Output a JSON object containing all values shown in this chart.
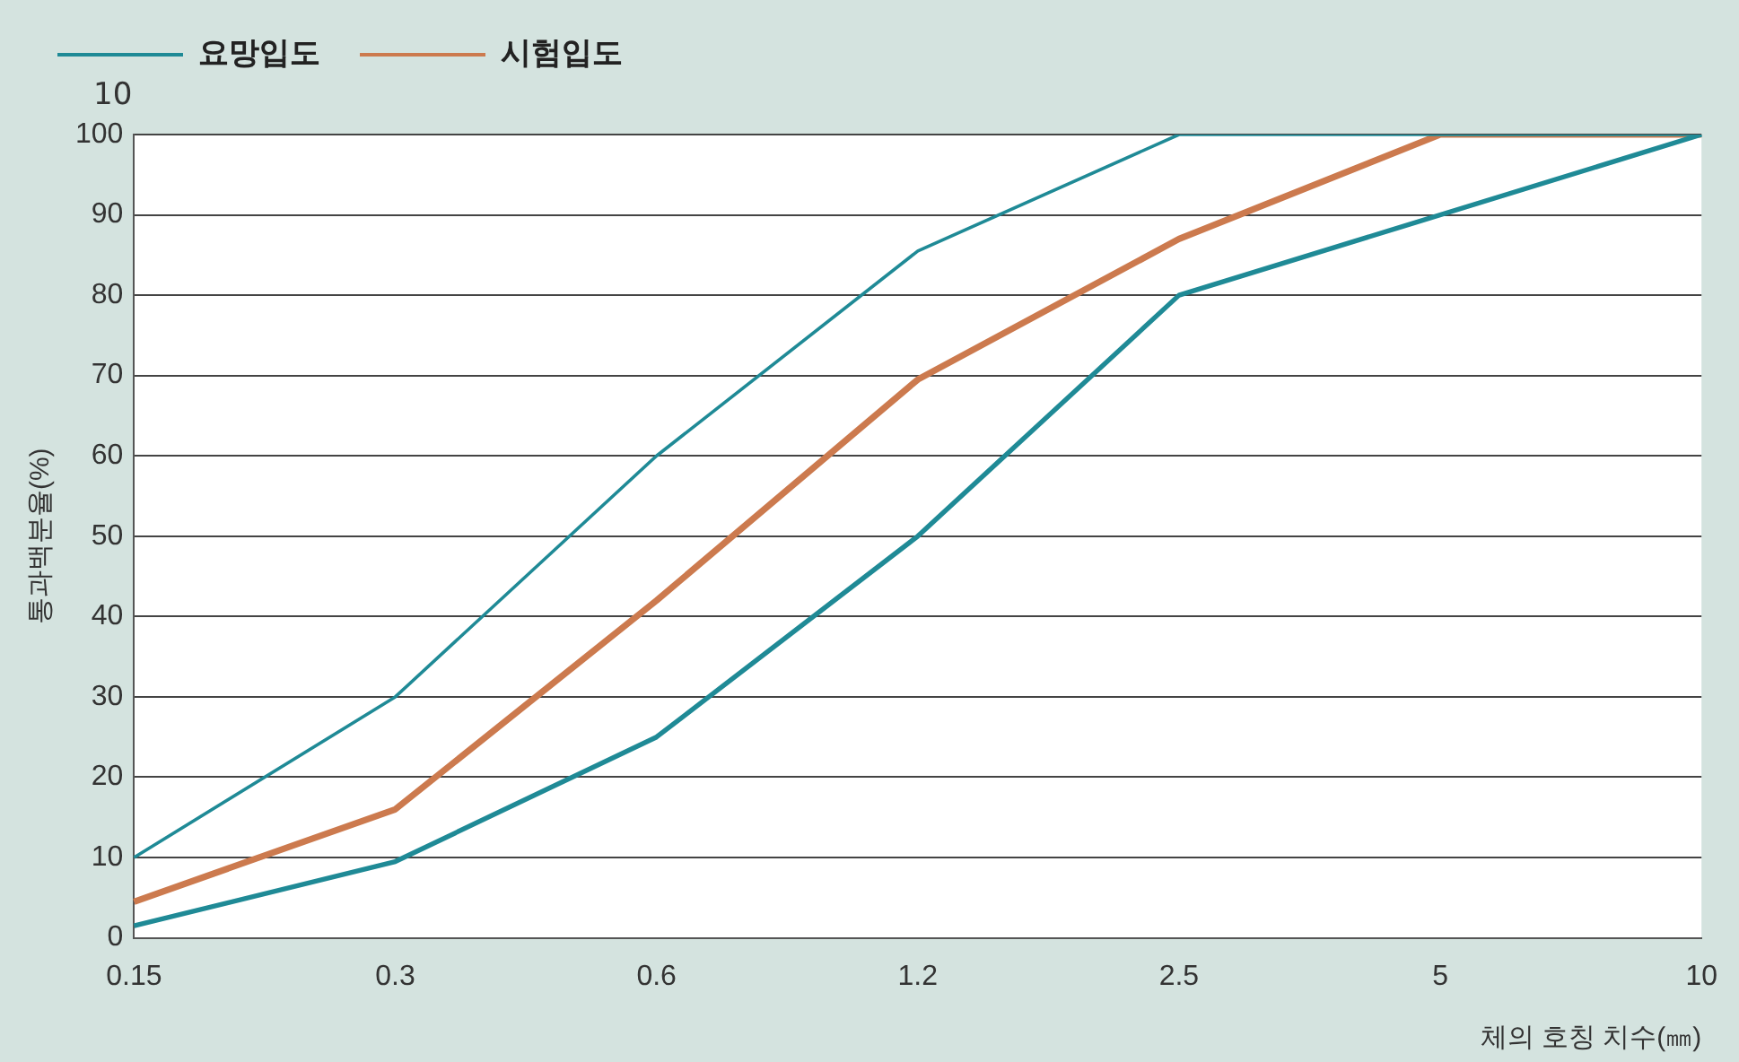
{
  "chart_data": {
    "type": "line",
    "xlabel": "체의 호칭 치수(㎜)",
    "ylabel": "통과백분율(%)",
    "categories": [
      "0.15",
      "0.3",
      "0.6",
      "1.2",
      "2.5",
      "5",
      "10"
    ],
    "series": [
      {
        "name": "요망입도",
        "color": "#1f8a96",
        "values": [
          10,
          30,
          60,
          85.5,
          100,
          100,
          100
        ]
      },
      {
        "color": "#1f8a96",
        "values": [
          1.5,
          9.5,
          25,
          50,
          80,
          null,
          100
        ]
      },
      {
        "name": "시험입도",
        "color": "#cc7a4e",
        "values": [
          4.5,
          16,
          42,
          69.5,
          87,
          100,
          100
        ]
      }
    ],
    "ylim": [
      0,
      100
    ],
    "yticks": [
      0,
      10,
      20,
      30,
      40,
      50,
      60,
      70,
      80,
      90,
      100
    ],
    "grid": "y",
    "legend": "top left",
    "marker": "none",
    "line_style": "solid",
    "annotations": [
      "10"
    ]
  }
}
